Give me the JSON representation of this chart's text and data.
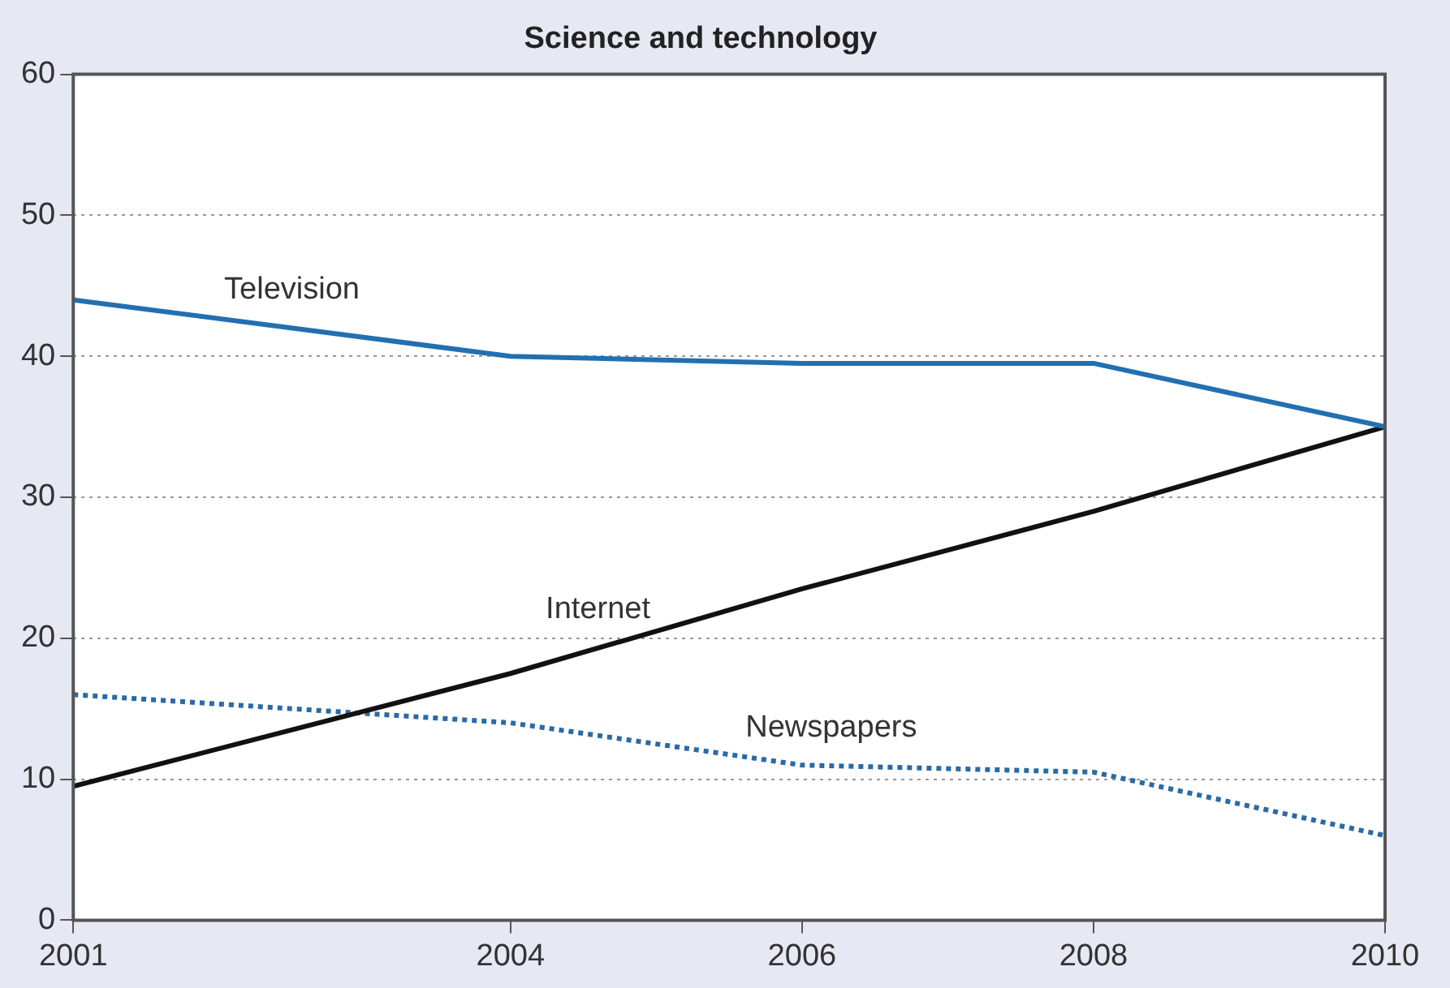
{
  "chart_data": {
    "type": "line",
    "title": "Science and technology",
    "x": [
      2001,
      2004,
      2006,
      2008,
      2010
    ],
    "series": [
      {
        "name": "Television",
        "color": "#2270b0",
        "line_style": "solid",
        "values": [
          44,
          40,
          39.5,
          39.5,
          35
        ]
      },
      {
        "name": "Internet",
        "color": "#111111",
        "line_style": "solid",
        "values": [
          9.5,
          17.5,
          23.5,
          29,
          35
        ]
      },
      {
        "name": "Newspapers",
        "color": "#2a6aa6",
        "line_style": "dotted",
        "values": [
          16,
          14,
          11,
          10.5,
          6
        ]
      }
    ],
    "xlim": [
      2001,
      2010
    ],
    "xticks": [
      2001,
      2004,
      2006,
      2008,
      2010
    ],
    "ylim": [
      0,
      60
    ],
    "yticks": [
      0,
      10,
      20,
      30,
      40,
      50,
      60
    ],
    "grid": "y",
    "legend": false,
    "marker": "none"
  }
}
